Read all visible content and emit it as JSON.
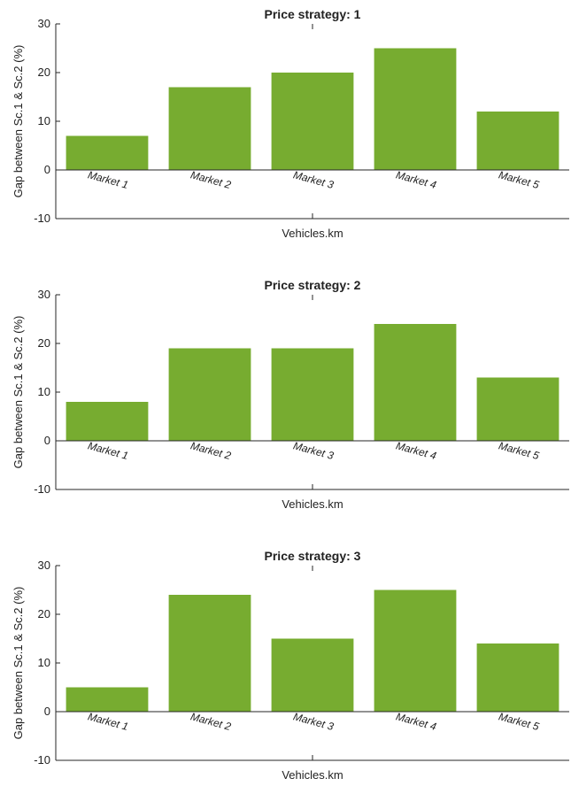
{
  "colors": {
    "bar": "#77AC30",
    "axis": "#262626"
  },
  "chart_data": [
    {
      "type": "bar",
      "title": "Price strategy: 1",
      "xlabel": "Vehicles.km",
      "ylabel": "Gap between Sc.1 & Sc.2 (%)",
      "categories": [
        "Market 1",
        "Market 2",
        "Market 3",
        "Market 4",
        "Market 5"
      ],
      "values": [
        7,
        17,
        20,
        25,
        12
      ],
      "ylim": [
        -10,
        30
      ],
      "yticks": [
        "-10",
        "0",
        "10",
        "20",
        "30"
      ],
      "grid": false
    },
    {
      "type": "bar",
      "title": "Price strategy: 2",
      "xlabel": "Vehicles.km",
      "ylabel": "Gap between Sc.1 & Sc.2 (%)",
      "categories": [
        "Market 1",
        "Market 2",
        "Market 3",
        "Market 4",
        "Market 5"
      ],
      "values": [
        8,
        19,
        19,
        24,
        13
      ],
      "ylim": [
        -10,
        30
      ],
      "yticks": [
        "-10",
        "0",
        "10",
        "20",
        "30"
      ],
      "grid": false
    },
    {
      "type": "bar",
      "title": "Price strategy: 3",
      "xlabel": "Vehicles.km",
      "ylabel": "Gap between Sc.1 & Sc.2 (%)",
      "categories": [
        "Market 1",
        "Market 2",
        "Market 3",
        "Market 4",
        "Market 5"
      ],
      "values": [
        5,
        24,
        15,
        25,
        14
      ],
      "ylim": [
        -10,
        30
      ],
      "yticks": [
        "-10",
        "0",
        "10",
        "20",
        "30"
      ],
      "grid": false
    }
  ]
}
